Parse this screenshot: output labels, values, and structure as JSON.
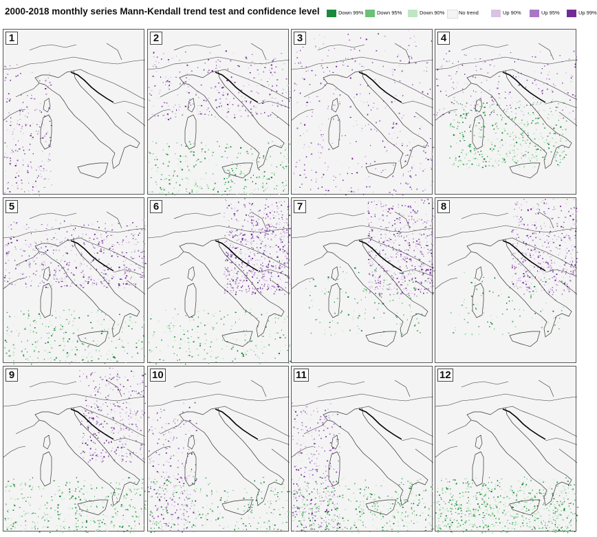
{
  "title": "2000-2018 monthly series Mann-Kendall trend test and confidence level",
  "legend": [
    {
      "label": "Down 99%",
      "color": "#1a8a3c"
    },
    {
      "label": "Down 95%",
      "color": "#6cc079"
    },
    {
      "label": "Down 90%",
      "color": "#bfe6c2"
    },
    {
      "label": "No trend",
      "color": "#f4f4f4"
    },
    {
      "label": "Up 90%",
      "color": "#d8c3e3"
    },
    {
      "label": "Up 95%",
      "color": "#a878c4"
    },
    {
      "label": "Up 99%",
      "color": "#722b96"
    }
  ],
  "panels": [
    {
      "month": "1",
      "up": 0.3,
      "down": 0.05,
      "up_region": "west",
      "down_region": "none"
    },
    {
      "month": "2",
      "up": 0.45,
      "down": 0.45,
      "up_region": "north",
      "down_region": "south"
    },
    {
      "month": "3",
      "up": 0.55,
      "down": 0.1,
      "up_region": "all",
      "down_region": "none"
    },
    {
      "month": "4",
      "up": 0.3,
      "down": 0.6,
      "up_region": "north",
      "down_region": "center"
    },
    {
      "month": "5",
      "up": 0.7,
      "down": 0.4,
      "up_region": "north",
      "down_region": "south"
    },
    {
      "month": "6",
      "up": 0.9,
      "down": 0.3,
      "up_region": "northeast",
      "down_region": "south"
    },
    {
      "month": "7",
      "up": 0.75,
      "down": 0.2,
      "up_region": "northeast",
      "down_region": "center"
    },
    {
      "month": "8",
      "up": 0.6,
      "down": 0.15,
      "up_region": "northeast",
      "down_region": "center"
    },
    {
      "month": "9",
      "up": 0.55,
      "down": 0.55,
      "up_region": "northeast",
      "down_region": "south"
    },
    {
      "month": "10",
      "up": 0.4,
      "down": 0.35,
      "up_region": "west",
      "down_region": "south"
    },
    {
      "month": "11",
      "up": 0.45,
      "down": 0.6,
      "up_region": "west",
      "down_region": "south"
    },
    {
      "month": "12",
      "up": 0.05,
      "down": 1.0,
      "up_region": "none",
      "down_region": "south"
    }
  ]
}
